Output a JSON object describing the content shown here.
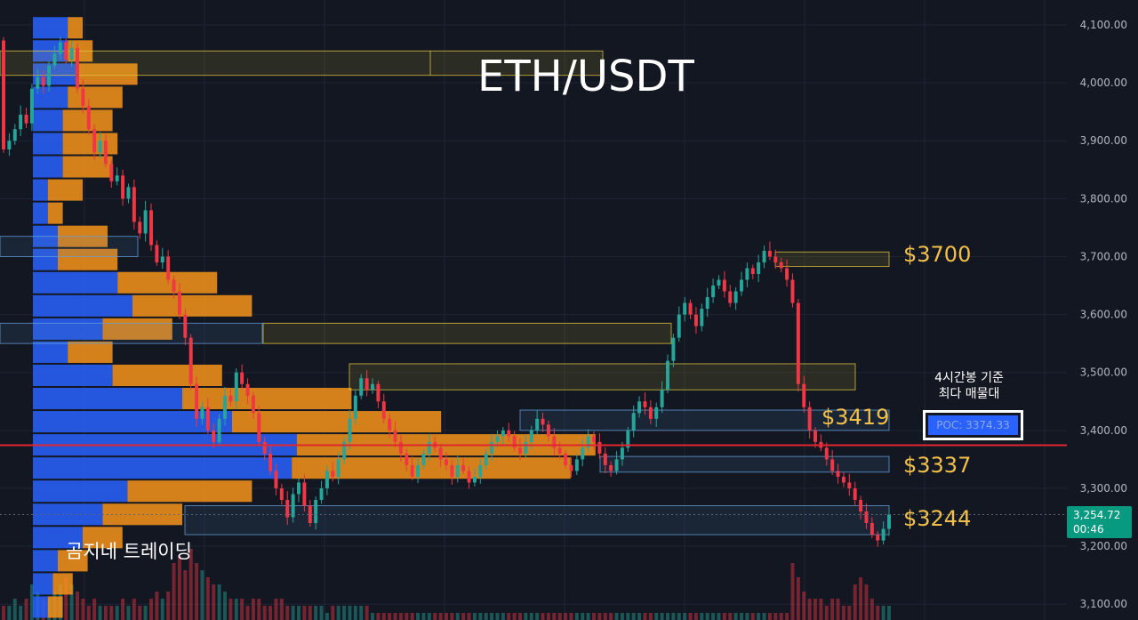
{
  "chart_data": {
    "type": "candlestick",
    "title": "ETH/USDT",
    "y_axis": {
      "ticks": [
        "4,100.00",
        "4,000.00",
        "3,900.00",
        "3,800.00",
        "3,700.00",
        "3,600.00",
        "3,500.00",
        "3,400.00",
        "3,300.00",
        "3,200.00",
        "3,100.00"
      ],
      "range": [
        3075,
        4125
      ],
      "position": "right"
    },
    "grid": true,
    "current_price": {
      "value": 3254.72,
      "label": "3,254.72",
      "countdown": "00:46"
    },
    "price_levels": [
      {
        "label": "$3700",
        "price": 3700
      },
      {
        "label": "$3419",
        "price": 3419
      },
      {
        "label": "$3337",
        "price": 3337
      },
      {
        "label": "$3244",
        "price": 3244
      }
    ],
    "poc": {
      "label": "POC: 3374.33",
      "price": 3374.33
    },
    "annotation": [
      "4시간봉 기준",
      "최다 매물대"
    ],
    "watermark": "곰지네 트레이딩",
    "zones": [
      {
        "low": 4013,
        "high": 4055,
        "color": "yellow"
      },
      {
        "low": 3700,
        "high": 3735,
        "color": "blue"
      },
      {
        "low": 3683,
        "high": 3708,
        "color": "yellow"
      },
      {
        "low": 3550,
        "high": 3585,
        "color": "blue"
      },
      {
        "low": 3550,
        "high": 3585,
        "color": "yellow"
      },
      {
        "low": 3470,
        "high": 3515,
        "color": "yellow"
      },
      {
        "low": 3400,
        "high": 3435,
        "color": "blue"
      },
      {
        "low": 3328,
        "high": 3355,
        "color": "blue"
      },
      {
        "low": 3220,
        "high": 3270,
        "color": "blue"
      }
    ],
    "volume_profile": {
      "bin_size": 40,
      "bins": [
        {
          "low": 4075,
          "high": 4115,
          "buy": 0.07,
          "sell": 0.03
        },
        {
          "low": 4035,
          "high": 4075,
          "buy": 0.07,
          "sell": 0.05
        },
        {
          "low": 3995,
          "high": 4035,
          "buy": 0.09,
          "sell": 0.12
        },
        {
          "low": 3955,
          "high": 3995,
          "buy": 0.07,
          "sell": 0.11
        },
        {
          "low": 3915,
          "high": 3955,
          "buy": 0.06,
          "sell": 0.1
        },
        {
          "low": 3875,
          "high": 3915,
          "buy": 0.06,
          "sell": 0.11
        },
        {
          "low": 3835,
          "high": 3875,
          "buy": 0.06,
          "sell": 0.1
        },
        {
          "low": 3795,
          "high": 3835,
          "buy": 0.03,
          "sell": 0.07
        },
        {
          "low": 3755,
          "high": 3795,
          "buy": 0.03,
          "sell": 0.03
        },
        {
          "low": 3715,
          "high": 3755,
          "buy": 0.05,
          "sell": 0.1
        },
        {
          "low": 3675,
          "high": 3715,
          "buy": 0.05,
          "sell": 0.12
        },
        {
          "low": 3635,
          "high": 3675,
          "buy": 0.17,
          "sell": 0.2
        },
        {
          "low": 3595,
          "high": 3635,
          "buy": 0.2,
          "sell": 0.24
        },
        {
          "low": 3555,
          "high": 3595,
          "buy": 0.14,
          "sell": 0.14
        },
        {
          "low": 3515,
          "high": 3555,
          "buy": 0.07,
          "sell": 0.09
        },
        {
          "low": 3475,
          "high": 3515,
          "buy": 0.16,
          "sell": 0.22
        },
        {
          "low": 3435,
          "high": 3475,
          "buy": 0.3,
          "sell": 0.34
        },
        {
          "low": 3395,
          "high": 3435,
          "buy": 0.4,
          "sell": 0.42
        },
        {
          "low": 3355,
          "high": 3395,
          "buy": 0.53,
          "sell": 0.6
        },
        {
          "low": 3315,
          "high": 3355,
          "buy": 0.52,
          "sell": 0.56
        },
        {
          "low": 3275,
          "high": 3315,
          "buy": 0.19,
          "sell": 0.25
        },
        {
          "low": 3235,
          "high": 3275,
          "buy": 0.14,
          "sell": 0.16
        },
        {
          "low": 3195,
          "high": 3235,
          "buy": 0.1,
          "sell": 0.08
        },
        {
          "low": 3155,
          "high": 3195,
          "buy": 0.05,
          "sell": 0.06
        },
        {
          "low": 3115,
          "high": 3155,
          "buy": 0.04,
          "sell": 0.04
        },
        {
          "low": 3075,
          "high": 3115,
          "buy": 0.03,
          "sell": 0.03
        }
      ]
    },
    "candles_from": 4073,
    "candle_closes": [
      3885,
      3900,
      3920,
      3945,
      3930,
      3990,
      4010,
      3995,
      4030,
      4050,
      4070,
      4040,
      4060,
      3990,
      3960,
      3920,
      3880,
      3900,
      3860,
      3830,
      3840,
      3800,
      3820,
      3760,
      3740,
      3780,
      3720,
      3690,
      3700,
      3660,
      3640,
      3600,
      3560,
      3480,
      3420,
      3440,
      3400,
      3380,
      3420,
      3460,
      3450,
      3500,
      3480,
      3460,
      3430,
      3380,
      3360,
      3330,
      3300,
      3280,
      3250,
      3290,
      3310,
      3270,
      3240,
      3280,
      3300,
      3330,
      3320,
      3350,
      3380,
      3420,
      3460,
      3490,
      3470,
      3480,
      3450,
      3420,
      3400,
      3380,
      3360,
      3340,
      3320,
      3340,
      3360,
      3380,
      3370,
      3350,
      3340,
      3320,
      3340,
      3330,
      3310,
      3320,
      3340,
      3360,
      3380,
      3390,
      3400,
      3390,
      3370,
      3360,
      3380,
      3400,
      3420,
      3410,
      3390,
      3370,
      3360,
      3340,
      3330,
      3350,
      3370,
      3390,
      3380,
      3360,
      3340,
      3330,
      3350,
      3370,
      3400,
      3430,
      3450,
      3440,
      3420,
      3440,
      3470,
      3520,
      3560,
      3600,
      3620,
      3600,
      3580,
      3610,
      3630,
      3650,
      3660,
      3640,
      3620,
      3640,
      3660,
      3680,
      3670,
      3690,
      3710,
      3700,
      3690,
      3680,
      3660,
      3620,
      3480,
      3440,
      3400,
      3380,
      3370,
      3350,
      3330,
      3320,
      3310,
      3300,
      3280,
      3260,
      3240,
      3220,
      3210,
      3230,
      3254.72
    ],
    "volumes": [
      0.2,
      0.2,
      0.3,
      0.2,
      0.3,
      0.5,
      0.4,
      0.3,
      0.3,
      0.4,
      0.5,
      0.6,
      0.5,
      0.4,
      0.3,
      0.2,
      0.3,
      0.2,
      0.2,
      0.2,
      0.2,
      0.3,
      0.2,
      0.3,
      0.2,
      0.2,
      0.3,
      0.4,
      0.3,
      0.4,
      0.8,
      0.9,
      0.7,
      1.0,
      0.8,
      0.7,
      0.6,
      0.5,
      0.5,
      0.4,
      0.3,
      0.3,
      0.3,
      0.2,
      0.3,
      0.3,
      0.2,
      0.2,
      0.3,
      0.3,
      0.2,
      0.2,
      0.2,
      0.2,
      0.2,
      0.2,
      0.2,
      0.1,
      0.2,
      0.2,
      0.2,
      0.2,
      0.2,
      0.2,
      0.2,
      0.1,
      0.1,
      0.1,
      0.1,
      0.1,
      0.1,
      0.1,
      0.1,
      0.1,
      0.1,
      0.1,
      0.1,
      0.1,
      0.1,
      0.1,
      0.1,
      0.1,
      0.1,
      0.1,
      0.1,
      0.1,
      0.1,
      0.1,
      0.1,
      0.1,
      0.1,
      0.1,
      0.1,
      0.1,
      0.1,
      0.1,
      0.1,
      0.1,
      0.1,
      0.1,
      0.1,
      0.1,
      0.1,
      0.1,
      0.1,
      0.1,
      0.1,
      0.1,
      0.1,
      0.1,
      0.1,
      0.1,
      0.1,
      0.1,
      0.1,
      0.1,
      0.1,
      0.1,
      0.1,
      0.1,
      0.1,
      0.1,
      0.1,
      0.1,
      0.1,
      0.1,
      0.1,
      0.1,
      0.1,
      0.1,
      0.1,
      0.1,
      0.1,
      0.1,
      0.1,
      0.1,
      0.1,
      0.1,
      0.1,
      0.8,
      0.6,
      0.4,
      0.3,
      0.3,
      0.3,
      0.2,
      0.3,
      0.3,
      0.2,
      0.2,
      0.5,
      0.6,
      0.5,
      0.3,
      0.2,
      0.2,
      0.2
    ],
    "colors": {
      "background": "#131722",
      "up": "#26a69a",
      "down": "#f23645",
      "profile_buy": "#2962ff",
      "profile_sell": "#f7931a",
      "level_text": "#f2c04a",
      "poc_line": "#e0262f",
      "grid": "#1f2433",
      "axis_text": "#b2b5be"
    }
  }
}
